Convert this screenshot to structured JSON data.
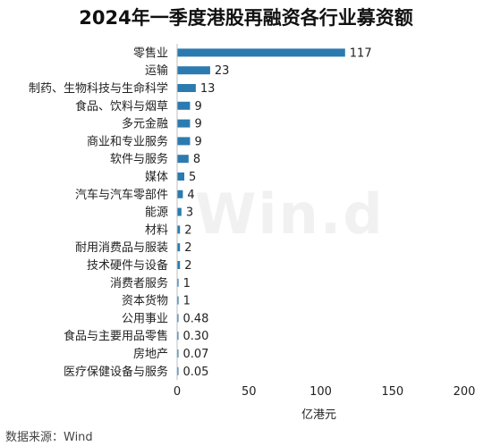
{
  "chart_data": {
    "type": "bar",
    "orientation": "horizontal",
    "title": "2024年一季度港股再融资各行业募资额",
    "xlabel": "亿港元",
    "ylabel": "",
    "xlim": [
      0,
      200
    ],
    "xticks": [
      0,
      50,
      100,
      150,
      200
    ],
    "grid": false,
    "legend": "none",
    "bar_color": "#2b7bb0",
    "categories": [
      "零售业",
      "运输",
      "制药、生物科技与生命科学",
      "食品、饮料与烟草",
      "多元金融",
      "商业和专业服务",
      "软件与服务",
      "媒体",
      "汽车与汽车零部件",
      "能源",
      "材料",
      "耐用消费品与服装",
      "技术硬件与设备",
      "消费者服务",
      "资本货物",
      "公用事业",
      "食品与主要用品零售",
      "房地产",
      "医疗保健设备与服务"
    ],
    "values": [
      117,
      23,
      13,
      9,
      9,
      9,
      8,
      5,
      4,
      3,
      2,
      2,
      2,
      1,
      1,
      0.48,
      0.3,
      0.07,
      0.05
    ],
    "data_labels": [
      "117",
      "23",
      "13",
      "9",
      "9",
      "9",
      "8",
      "5",
      "4",
      "3",
      "2",
      "2",
      "2",
      "1",
      "1",
      "0.48",
      "0.30",
      "0.07",
      "0.05"
    ]
  },
  "source": "数据来源：Wind",
  "watermark": "Win.d"
}
